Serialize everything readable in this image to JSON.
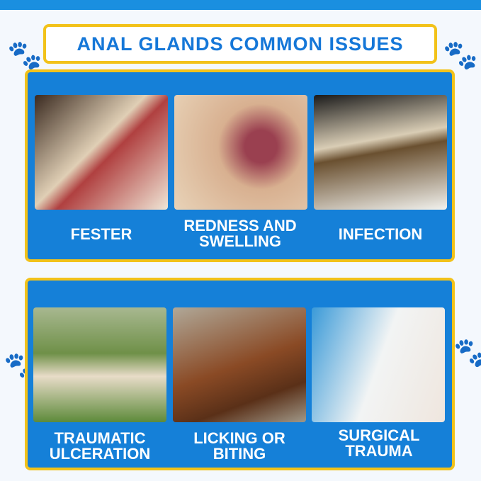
{
  "title": "ANAL GLANDS COMMON ISSUES",
  "row1": [
    {
      "label": "FESTER",
      "color": "#c89a80"
    },
    {
      "label": "REDNESS AND SWELLING",
      "color": "#d6a98a"
    },
    {
      "label": "INFECTION",
      "color": "#d9cdb5"
    }
  ],
  "row2": [
    {
      "label": "TRAUMATIC ULCERATION",
      "color": "#8aa060"
    },
    {
      "label": "LICKING OR BITING",
      "color": "#8a5a35"
    },
    {
      "label": "SURGICAL TRAUMA",
      "color": "#9fc8e8"
    }
  ]
}
